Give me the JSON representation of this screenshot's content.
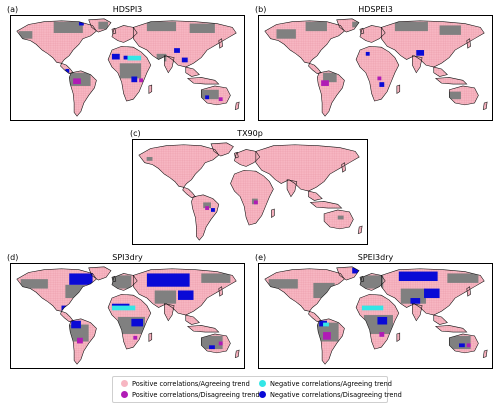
{
  "panels": [
    {
      "id": "a",
      "label": "(a)",
      "title": "HDSPI3"
    },
    {
      "id": "b",
      "label": "(b)",
      "title": "HDSPEI3"
    },
    {
      "id": "c",
      "label": "(c)",
      "title": "TX90p"
    },
    {
      "id": "d",
      "label": "(d)",
      "title": "SPI3dry"
    },
    {
      "id": "e",
      "label": "(e)",
      "title": "SPEI3dry"
    }
  ],
  "legend": {
    "items": [
      {
        "label": "Positive correlations/Agreeing trend",
        "color": "#f7b6c2"
      },
      {
        "label": "Positive correlations/Disagreeing trend",
        "color": "#b01bb5"
      },
      {
        "label": "Negative correlations/Agreeing trend",
        "color": "#33e6e6"
      },
      {
        "label": "Negative correlations/Disagreeing trend",
        "color": "#0a0ad6"
      }
    ]
  },
  "colors": {
    "land_gray": "#808080",
    "pink": "#f7b6c2",
    "magenta": "#b01bb5",
    "cyan": "#33e6e6",
    "blue": "#0a0ad6"
  }
}
